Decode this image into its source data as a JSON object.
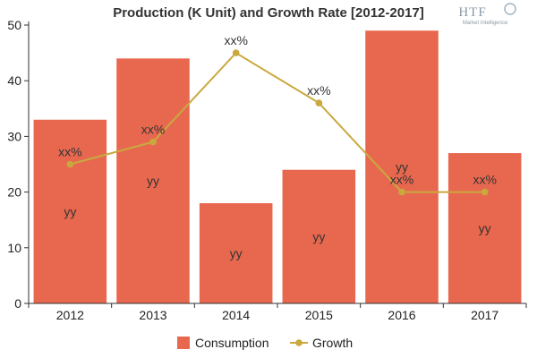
{
  "chart_data": {
    "type": "bar",
    "title": "Production (K Unit) and Growth Rate [2012-2017]",
    "categories": [
      "2012",
      "2013",
      "2014",
      "2015",
      "2016",
      "2017"
    ],
    "xlabel": "",
    "ylabel": "",
    "ylim": [
      0,
      50
    ],
    "yticks": [
      0,
      10,
      20,
      30,
      40,
      50
    ],
    "grid": false,
    "legend_position": "bottom",
    "series": [
      {
        "name": "Consumption",
        "type": "bar",
        "values": [
          33,
          44,
          18,
          24,
          49,
          27
        ],
        "data_labels": [
          "yy",
          "yy",
          "yy",
          "yy",
          "yy",
          "yy"
        ],
        "color": "#e8684f"
      },
      {
        "name": "Growth",
        "type": "line",
        "values": [
          25,
          29,
          45,
          36,
          20,
          20
        ],
        "data_labels": [
          "xx%",
          "xx%",
          "xx%",
          "xx%",
          "xx%",
          "xx%"
        ],
        "color": "#c9a93e"
      }
    ]
  },
  "logo": {
    "brand": "HTF",
    "tagline": "Market Intelligence"
  }
}
